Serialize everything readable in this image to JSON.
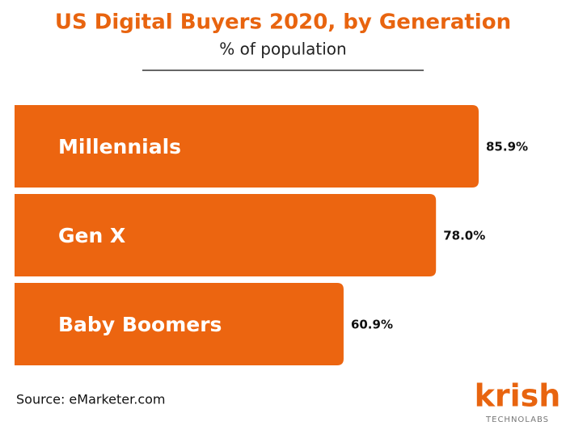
{
  "chart_data": {
    "type": "hbar",
    "title": "US Digital Buyers 2020, by Generation",
    "subtitle": "% of population",
    "categories": [
      "Millennials",
      "Gen X",
      "Baby Boomers"
    ],
    "values": [
      85.9,
      78.0,
      60.9
    ],
    "value_labels": [
      "85.9%",
      "78.0%",
      "60.9%"
    ],
    "color": "#ec6510",
    "source": "Source: eMarketer.com"
  },
  "logo": {
    "name": "krish",
    "tagline": "TECHNOLABS"
  }
}
